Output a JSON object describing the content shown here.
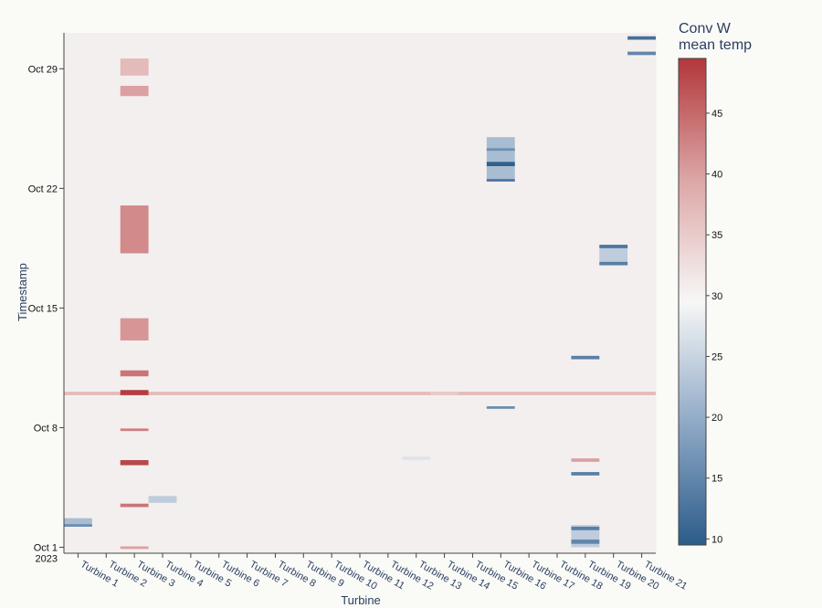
{
  "chart_data": {
    "type": "heatmap",
    "xlabel": "Turbine",
    "ylabel": "Timestamp",
    "colorbar_title": [
      "Conv W",
      "mean temp"
    ],
    "categories": [
      "Turbine 1",
      "Turbine 2",
      "Turbine 3",
      "Turbine 4",
      "Turbine 5",
      "Turbine 6",
      "Turbine 7",
      "Turbine 8",
      "Turbine 9",
      "Turbine 10",
      "Turbine 11",
      "Turbine 12",
      "Turbine 13",
      "Turbine 14",
      "Turbine 15",
      "Turbine 16",
      "Turbine 17",
      "Turbine 18",
      "Turbine 19",
      "Turbine 20",
      "Turbine 21"
    ],
    "y_ticks": [
      {
        "day": 0,
        "label": [
          "Oct 1",
          "2023"
        ]
      },
      {
        "day": 7,
        "label": [
          "Oct 8"
        ]
      },
      {
        "day": 14,
        "label": [
          "Oct 15"
        ]
      },
      {
        "day": 21,
        "label": [
          "Oct 22"
        ]
      },
      {
        "day": 28,
        "label": [
          "Oct 29"
        ]
      }
    ],
    "y_range_days": [
      -0.35,
      30.1
    ],
    "z_range": [
      9.5,
      49.5
    ],
    "colorbar_ticks": [
      10,
      15,
      20,
      25,
      30,
      35,
      40,
      45
    ],
    "colorscale": [
      [
        0,
        "#2b5c8a"
      ],
      [
        0.25,
        "#8fa9c6"
      ],
      [
        0.5,
        "#f7f7f7"
      ],
      [
        0.75,
        "#dda6a6"
      ],
      [
        1,
        "#b2373b"
      ]
    ],
    "baseline_value": 30.5,
    "grid": false,
    "notable_bands": [
      {
        "turbine": "Turbine 1",
        "start_day": 1.2,
        "end_day": 1.7,
        "value": 22
      },
      {
        "turbine": "Turbine 1",
        "start_day": 1.2,
        "end_day": 1.35,
        "value": 16
      },
      {
        "turbine": "Turbine 3",
        "start_day": -0.1,
        "end_day": 0.05,
        "value": 40
      },
      {
        "turbine": "Turbine 3",
        "start_day": 2.35,
        "end_day": 2.55,
        "value": 44
      },
      {
        "turbine": "Turbine 3",
        "start_day": 4.8,
        "end_day": 5.1,
        "value": 48
      },
      {
        "turbine": "Turbine 3",
        "start_day": 6.8,
        "end_day": 6.95,
        "value": 43
      },
      {
        "turbine": "Turbine 3",
        "start_day": 8.9,
        "end_day": 9.2,
        "value": 49
      },
      {
        "turbine": "Turbine 3",
        "start_day": 10.0,
        "end_day": 10.35,
        "value": 44
      },
      {
        "turbine": "Turbine 3",
        "start_day": 12.1,
        "end_day": 13.4,
        "value": 41
      },
      {
        "turbine": "Turbine 3",
        "start_day": 17.2,
        "end_day": 20.0,
        "value": 42
      },
      {
        "turbine": "Turbine 3",
        "start_day": 26.4,
        "end_day": 27.0,
        "value": 40
      },
      {
        "turbine": "Turbine 3",
        "start_day": 27.6,
        "end_day": 28.6,
        "value": 37
      },
      {
        "turbine": "Turbine 4",
        "start_day": 2.6,
        "end_day": 3.0,
        "value": 24
      },
      {
        "turbine": "Turbine 13",
        "start_day": 5.1,
        "end_day": 5.3,
        "value": 27
      },
      {
        "turbine": "Turbine 14",
        "start_day": 8.9,
        "end_day": 9.1,
        "value": 35
      },
      {
        "turbine": "Turbine 16",
        "start_day": 8.1,
        "end_day": 8.25,
        "value": 16
      },
      {
        "turbine": "Turbine 16",
        "start_day": 21.4,
        "end_day": 24.0,
        "value": 22
      },
      {
        "turbine": "Turbine 16",
        "start_day": 21.4,
        "end_day": 21.55,
        "value": 13
      },
      {
        "turbine": "Turbine 16",
        "start_day": 22.3,
        "end_day": 22.55,
        "value": 10
      },
      {
        "turbine": "Turbine 16",
        "start_day": 23.2,
        "end_day": 23.35,
        "value": 16
      },
      {
        "turbine": "Turbine 19",
        "start_day": 0.0,
        "end_day": 1.3,
        "value": 24
      },
      {
        "turbine": "Turbine 19",
        "start_day": 0.2,
        "end_day": 0.45,
        "value": 15
      },
      {
        "turbine": "Turbine 19",
        "start_day": 1.0,
        "end_day": 1.2,
        "value": 14
      },
      {
        "turbine": "Turbine 19",
        "start_day": 4.2,
        "end_day": 4.4,
        "value": 14
      },
      {
        "turbine": "Turbine 19",
        "start_day": 5.0,
        "end_day": 5.2,
        "value": 40
      },
      {
        "turbine": "Turbine 19",
        "start_day": 11.0,
        "end_day": 11.2,
        "value": 14
      },
      {
        "turbine": "Turbine 20",
        "start_day": 16.5,
        "end_day": 17.7,
        "value": 24
      },
      {
        "turbine": "Turbine 20",
        "start_day": 16.5,
        "end_day": 16.7,
        "value": 14
      },
      {
        "turbine": "Turbine 20",
        "start_day": 17.5,
        "end_day": 17.7,
        "value": 13
      },
      {
        "turbine": "Turbine 21",
        "start_day": 28.8,
        "end_day": 29.0,
        "value": 15
      },
      {
        "turbine": "Turbine 21",
        "start_day": 29.7,
        "end_day": 29.9,
        "value": 12
      }
    ],
    "row_bands": [
      {
        "start_day": 8.9,
        "end_day": 9.1,
        "value": 37
      }
    ]
  }
}
